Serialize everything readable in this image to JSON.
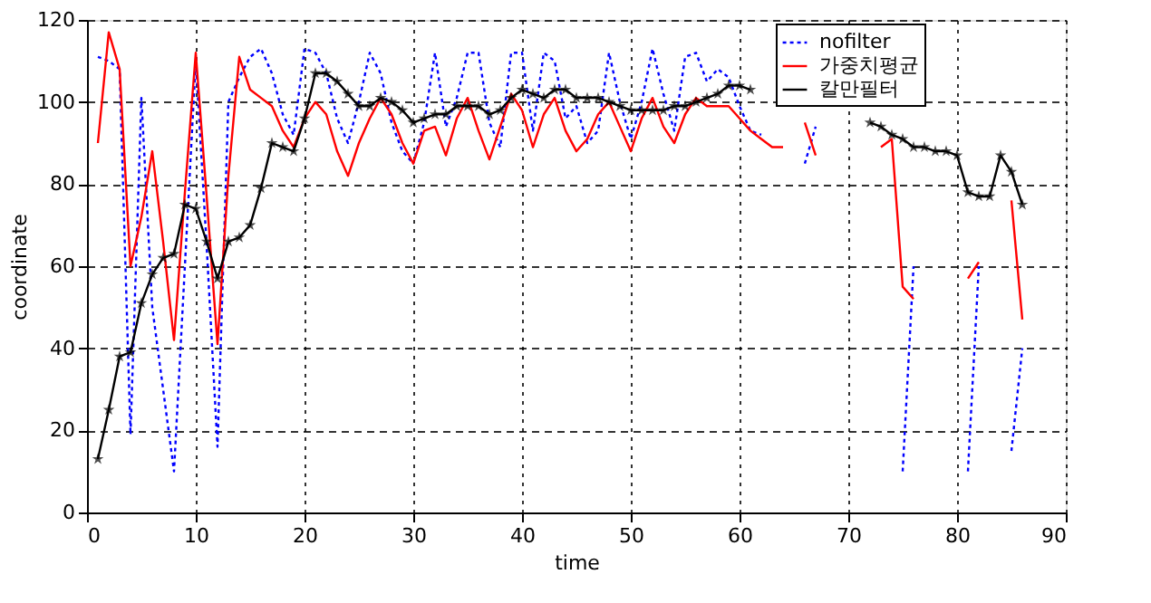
{
  "chart_data": {
    "type": "line",
    "xlabel": "time",
    "ylabel": "coordinate",
    "x": [
      1,
      2,
      3,
      4,
      5,
      6,
      7,
      8,
      9,
      10,
      11,
      12,
      13,
      14,
      15,
      16,
      17,
      18,
      19,
      20,
      21,
      22,
      23,
      24,
      25,
      26,
      27,
      28,
      29,
      30,
      31,
      32,
      33,
      34,
      35,
      36,
      37,
      38,
      39,
      40,
      41,
      42,
      43,
      44,
      45,
      46,
      47,
      48,
      49,
      50,
      51,
      52,
      53,
      54,
      55,
      56,
      57,
      58,
      59,
      60,
      61,
      62,
      63,
      64,
      65,
      66,
      67,
      68,
      69,
      70,
      71,
      72,
      73,
      74,
      75,
      76,
      77,
      78,
      79,
      80,
      81,
      82,
      83,
      84,
      85,
      86
    ],
    "series": [
      {
        "name": "nofilter",
        "color": "#0000ff",
        "line_style": "dotted",
        "marker": "none",
        "values": [
          111,
          110,
          108,
          19,
          101,
          50,
          30,
          10,
          60,
          110,
          65,
          16,
          100,
          106,
          111,
          113,
          107,
          97,
          92,
          113,
          112,
          107,
          96,
          90,
          100,
          112,
          107,
          95,
          88,
          85,
          95,
          112,
          94,
          101,
          112,
          112,
          95,
          89,
          112,
          112,
          93,
          112,
          110,
          96,
          99,
          90,
          93,
          112,
          100,
          91,
          100,
          113,
          102,
          93,
          111,
          112,
          105,
          108,
          106,
          99,
          93,
          92,
          null,
          null,
          null,
          85,
          94,
          null,
          null,
          null,
          null,
          null,
          null,
          null,
          10,
          60,
          null,
          null,
          null,
          null,
          10,
          60,
          null,
          null,
          15,
          40
        ]
      },
      {
        "name": "가중치평균",
        "color": "#ff0000",
        "line_style": "solid",
        "marker": "none",
        "values": [
          90,
          117,
          108,
          60,
          72,
          88,
          66,
          42,
          78,
          112,
          77,
          41,
          82,
          111,
          103,
          101,
          99,
          93,
          89,
          96,
          100,
          97,
          88,
          82,
          90,
          96,
          101,
          97,
          90,
          85,
          93,
          94,
          87,
          96,
          101,
          93,
          86,
          94,
          102,
          98,
          89,
          97,
          101,
          93,
          88,
          91,
          97,
          100,
          94,
          88,
          96,
          101,
          94,
          90,
          97,
          101,
          99,
          99,
          99,
          96,
          93,
          91,
          89,
          89,
          null,
          95,
          87,
          null,
          null,
          null,
          null,
          null,
          89,
          91,
          55,
          52,
          null,
          null,
          null,
          null,
          57,
          61,
          null,
          null,
          76,
          47
        ]
      },
      {
        "name": "칼만필터",
        "color": "#000000",
        "line_style": "solid",
        "marker": "star",
        "values": [
          13,
          25,
          38,
          39,
          51,
          58,
          62,
          63,
          75,
          74,
          66,
          57,
          66,
          67,
          70,
          79,
          90,
          89,
          88,
          96,
          107,
          107,
          105,
          102,
          99,
          99,
          101,
          100,
          98,
          95,
          96,
          97,
          97,
          99,
          99,
          99,
          97,
          98,
          101,
          103,
          102,
          101,
          103,
          103,
          101,
          101,
          101,
          100,
          99,
          98,
          98,
          98,
          98,
          99,
          99,
          100,
          101,
          102,
          104,
          104,
          103,
          null,
          null,
          null,
          null,
          null,
          null,
          null,
          null,
          null,
          null,
          95,
          94,
          92,
          91,
          89,
          89,
          88,
          88,
          87,
          78,
          77,
          77,
          87,
          83,
          75
        ]
      }
    ],
    "xlim": [
      0,
      90
    ],
    "xticks": [
      0,
      10,
      20,
      30,
      40,
      50,
      60,
      70,
      80,
      90
    ],
    "ylim": [
      0,
      120
    ],
    "yticks": [
      0,
      20,
      40,
      60,
      80,
      100,
      120
    ],
    "grid": true,
    "legend": "top right"
  }
}
